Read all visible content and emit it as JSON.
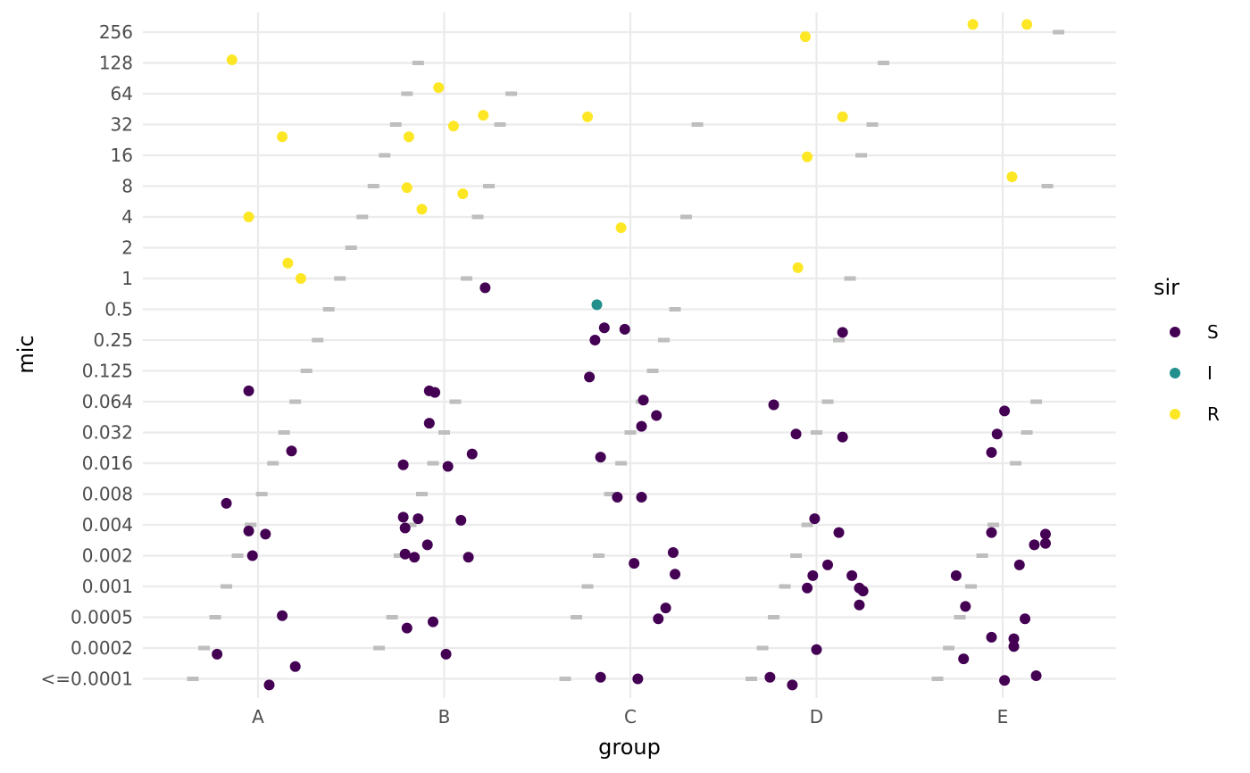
{
  "chart_data": {
    "type": "scatter",
    "xlabel": "group",
    "ylabel": "mic",
    "categories": [
      "A",
      "B",
      "C",
      "D",
      "E"
    ],
    "y_tick_labels": [
      "<=0.0001",
      "0.0002",
      "0.0005",
      "0.001",
      "0.002",
      "0.004",
      "0.008",
      "0.016",
      "0.032",
      "0.064",
      "0.125",
      "0.25",
      "0.5",
      "1",
      "2",
      "4",
      "8",
      "16",
      "32",
      "64",
      "128",
      "256"
    ],
    "grid": true,
    "legend": {
      "title": "sir",
      "placement": "right",
      "entries": [
        {
          "key": "S",
          "label": "S",
          "color": "#440154"
        },
        {
          "key": "I",
          "label": "I",
          "color": "#21908C"
        },
        {
          "key": "R",
          "label": "R",
          "color": "#FDE725"
        }
      ]
    },
    "marker_color": "#BEBEBE",
    "points": [
      {
        "group": "A",
        "x": 0.86,
        "y": 20.1,
        "sir": "R"
      },
      {
        "group": "A",
        "x": 0.95,
        "y": 15.0,
        "sir": "R"
      },
      {
        "group": "A",
        "x": 1.13,
        "y": 17.6,
        "sir": "R"
      },
      {
        "group": "A",
        "x": 1.16,
        "y": 13.5,
        "sir": "R"
      },
      {
        "group": "A",
        "x": 1.23,
        "y": 13.0,
        "sir": "R"
      },
      {
        "group": "A",
        "x": 0.95,
        "y": 9.35,
        "sir": "S"
      },
      {
        "group": "A",
        "x": 0.83,
        "y": 5.7,
        "sir": "S"
      },
      {
        "group": "A",
        "x": 0.95,
        "y": 4.8,
        "sir": "S"
      },
      {
        "group": "A",
        "x": 1.04,
        "y": 4.7,
        "sir": "S"
      },
      {
        "group": "A",
        "x": 0.97,
        "y": 4.0,
        "sir": "S"
      },
      {
        "group": "A",
        "x": 1.18,
        "y": 7.4,
        "sir": "S"
      },
      {
        "group": "A",
        "x": 1.13,
        "y": 2.05,
        "sir": "S"
      },
      {
        "group": "A",
        "x": 0.78,
        "y": 0.8,
        "sir": "S"
      },
      {
        "group": "A",
        "x": 1.2,
        "y": 0.4,
        "sir": "S"
      },
      {
        "group": "A",
        "x": 1.06,
        "y": -0.2,
        "sir": "S"
      },
      {
        "group": "B",
        "x": 1.97,
        "y": 19.2,
        "sir": "R"
      },
      {
        "group": "B",
        "x": 2.05,
        "y": 17.95,
        "sir": "R"
      },
      {
        "group": "B",
        "x": 2.21,
        "y": 18.3,
        "sir": "R"
      },
      {
        "group": "B",
        "x": 1.81,
        "y": 17.6,
        "sir": "R"
      },
      {
        "group": "B",
        "x": 1.8,
        "y": 15.95,
        "sir": "R"
      },
      {
        "group": "B",
        "x": 2.1,
        "y": 15.75,
        "sir": "R"
      },
      {
        "group": "B",
        "x": 1.88,
        "y": 15.25,
        "sir": "R"
      },
      {
        "group": "B",
        "x": 2.22,
        "y": 12.7,
        "sir": "S"
      },
      {
        "group": "B",
        "x": 1.92,
        "y": 9.35,
        "sir": "S"
      },
      {
        "group": "B",
        "x": 1.95,
        "y": 9.3,
        "sir": "S"
      },
      {
        "group": "B",
        "x": 1.92,
        "y": 8.3,
        "sir": "S"
      },
      {
        "group": "B",
        "x": 2.15,
        "y": 7.3,
        "sir": "S"
      },
      {
        "group": "B",
        "x": 1.78,
        "y": 6.95,
        "sir": "S"
      },
      {
        "group": "B",
        "x": 2.02,
        "y": 6.9,
        "sir": "S"
      },
      {
        "group": "B",
        "x": 1.78,
        "y": 5.25,
        "sir": "S"
      },
      {
        "group": "B",
        "x": 1.86,
        "y": 5.2,
        "sir": "S"
      },
      {
        "group": "B",
        "x": 1.79,
        "y": 4.9,
        "sir": "S"
      },
      {
        "group": "B",
        "x": 2.09,
        "y": 5.15,
        "sir": "S"
      },
      {
        "group": "B",
        "x": 1.91,
        "y": 4.35,
        "sir": "S"
      },
      {
        "group": "B",
        "x": 1.79,
        "y": 4.05,
        "sir": "S"
      },
      {
        "group": "B",
        "x": 1.84,
        "y": 3.95,
        "sir": "S"
      },
      {
        "group": "B",
        "x": 2.13,
        "y": 3.95,
        "sir": "S"
      },
      {
        "group": "B",
        "x": 1.94,
        "y": 1.85,
        "sir": "S"
      },
      {
        "group": "B",
        "x": 1.8,
        "y": 1.65,
        "sir": "S"
      },
      {
        "group": "B",
        "x": 2.01,
        "y": 0.8,
        "sir": "S"
      },
      {
        "group": "C",
        "x": 2.77,
        "y": 18.25,
        "sir": "R"
      },
      {
        "group": "C",
        "x": 2.95,
        "y": 14.65,
        "sir": "R"
      },
      {
        "group": "C",
        "x": 2.82,
        "y": 12.15,
        "sir": "I"
      },
      {
        "group": "C",
        "x": 2.86,
        "y": 11.4,
        "sir": "S"
      },
      {
        "group": "C",
        "x": 2.97,
        "y": 11.35,
        "sir": "S"
      },
      {
        "group": "C",
        "x": 2.81,
        "y": 11.0,
        "sir": "S"
      },
      {
        "group": "C",
        "x": 2.78,
        "y": 9.8,
        "sir": "S"
      },
      {
        "group": "C",
        "x": 3.07,
        "y": 9.05,
        "sir": "S"
      },
      {
        "group": "C",
        "x": 3.14,
        "y": 8.55,
        "sir": "S"
      },
      {
        "group": "C",
        "x": 3.06,
        "y": 8.2,
        "sir": "S"
      },
      {
        "group": "C",
        "x": 2.84,
        "y": 7.2,
        "sir": "S"
      },
      {
        "group": "C",
        "x": 2.93,
        "y": 5.9,
        "sir": "S"
      },
      {
        "group": "C",
        "x": 3.06,
        "y": 5.9,
        "sir": "S"
      },
      {
        "group": "C",
        "x": 3.23,
        "y": 4.1,
        "sir": "S"
      },
      {
        "group": "C",
        "x": 3.02,
        "y": 3.75,
        "sir": "S"
      },
      {
        "group": "C",
        "x": 3.24,
        "y": 3.4,
        "sir": "S"
      },
      {
        "group": "C",
        "x": 3.19,
        "y": 2.3,
        "sir": "S"
      },
      {
        "group": "C",
        "x": 3.15,
        "y": 1.95,
        "sir": "S"
      },
      {
        "group": "C",
        "x": 2.84,
        "y": 0.05,
        "sir": "S"
      },
      {
        "group": "C",
        "x": 3.04,
        "y": 0.0,
        "sir": "S"
      },
      {
        "group": "D",
        "x": 3.94,
        "y": 20.85,
        "sir": "R"
      },
      {
        "group": "D",
        "x": 4.14,
        "y": 18.25,
        "sir": "R"
      },
      {
        "group": "D",
        "x": 3.95,
        "y": 16.95,
        "sir": "R"
      },
      {
        "group": "D",
        "x": 3.9,
        "y": 13.35,
        "sir": "R"
      },
      {
        "group": "D",
        "x": 4.14,
        "y": 11.25,
        "sir": "S"
      },
      {
        "group": "D",
        "x": 3.77,
        "y": 8.9,
        "sir": "S"
      },
      {
        "group": "D",
        "x": 3.89,
        "y": 7.95,
        "sir": "S"
      },
      {
        "group": "D",
        "x": 4.14,
        "y": 7.85,
        "sir": "S"
      },
      {
        "group": "D",
        "x": 3.99,
        "y": 5.2,
        "sir": "S"
      },
      {
        "group": "D",
        "x": 4.12,
        "y": 4.75,
        "sir": "S"
      },
      {
        "group": "D",
        "x": 4.06,
        "y": 3.7,
        "sir": "S"
      },
      {
        "group": "D",
        "x": 3.98,
        "y": 3.35,
        "sir": "S"
      },
      {
        "group": "D",
        "x": 4.19,
        "y": 3.35,
        "sir": "S"
      },
      {
        "group": "D",
        "x": 3.95,
        "y": 2.95,
        "sir": "S"
      },
      {
        "group": "D",
        "x": 4.23,
        "y": 2.95,
        "sir": "S"
      },
      {
        "group": "D",
        "x": 4.25,
        "y": 2.85,
        "sir": "S"
      },
      {
        "group": "D",
        "x": 4.23,
        "y": 2.4,
        "sir": "S"
      },
      {
        "group": "D",
        "x": 4.0,
        "y": 0.95,
        "sir": "S"
      },
      {
        "group": "D",
        "x": 3.75,
        "y": 0.05,
        "sir": "S"
      },
      {
        "group": "D",
        "x": 3.87,
        "y": -0.2,
        "sir": "S"
      },
      {
        "group": "E",
        "x": 4.84,
        "y": 21.25,
        "sir": "R"
      },
      {
        "group": "E",
        "x": 5.13,
        "y": 21.25,
        "sir": "R"
      },
      {
        "group": "E",
        "x": 5.05,
        "y": 16.3,
        "sir": "R"
      },
      {
        "group": "E",
        "x": 5.01,
        "y": 8.7,
        "sir": "S"
      },
      {
        "group": "E",
        "x": 4.97,
        "y": 7.95,
        "sir": "S"
      },
      {
        "group": "E",
        "x": 4.94,
        "y": 7.35,
        "sir": "S"
      },
      {
        "group": "E",
        "x": 4.94,
        "y": 4.75,
        "sir": "S"
      },
      {
        "group": "E",
        "x": 5.23,
        "y": 4.7,
        "sir": "S"
      },
      {
        "group": "E",
        "x": 5.23,
        "y": 4.4,
        "sir": "S"
      },
      {
        "group": "E",
        "x": 5.17,
        "y": 4.35,
        "sir": "S"
      },
      {
        "group": "E",
        "x": 5.09,
        "y": 3.7,
        "sir": "S"
      },
      {
        "group": "E",
        "x": 4.75,
        "y": 3.35,
        "sir": "S"
      },
      {
        "group": "E",
        "x": 4.8,
        "y": 2.35,
        "sir": "S"
      },
      {
        "group": "E",
        "x": 5.12,
        "y": 1.95,
        "sir": "S"
      },
      {
        "group": "E",
        "x": 4.94,
        "y": 1.35,
        "sir": "S"
      },
      {
        "group": "E",
        "x": 5.06,
        "y": 1.3,
        "sir": "S"
      },
      {
        "group": "E",
        "x": 5.06,
        "y": 1.05,
        "sir": "S"
      },
      {
        "group": "E",
        "x": 4.79,
        "y": 0.65,
        "sir": "S"
      },
      {
        "group": "E",
        "x": 5.18,
        "y": 0.1,
        "sir": "S"
      },
      {
        "group": "E",
        "x": 5.01,
        "y": -0.05,
        "sir": "S"
      }
    ],
    "markers": [
      {
        "group": "A",
        "x": 0.65,
        "y": 0
      },
      {
        "group": "A",
        "x": 0.71,
        "y": 1
      },
      {
        "group": "A",
        "x": 0.77,
        "y": 2
      },
      {
        "group": "A",
        "x": 0.83,
        "y": 3
      },
      {
        "group": "A",
        "x": 0.89,
        "y": 4
      },
      {
        "group": "A",
        "x": 0.96,
        "y": 5
      },
      {
        "group": "A",
        "x": 1.02,
        "y": 6
      },
      {
        "group": "A",
        "x": 1.08,
        "y": 7
      },
      {
        "group": "A",
        "x": 1.14,
        "y": 8
      },
      {
        "group": "A",
        "x": 1.2,
        "y": 9
      },
      {
        "group": "A",
        "x": 1.26,
        "y": 10
      },
      {
        "group": "A",
        "x": 1.32,
        "y": 11
      },
      {
        "group": "A",
        "x": 1.38,
        "y": 12
      },
      {
        "group": "A",
        "x": 1.44,
        "y": 13
      },
      {
        "group": "A",
        "x": 1.5,
        "y": 14
      },
      {
        "group": "A",
        "x": 1.56,
        "y": 15
      },
      {
        "group": "A",
        "x": 1.62,
        "y": 16
      },
      {
        "group": "A",
        "x": 1.68,
        "y": 17
      },
      {
        "group": "A",
        "x": 1.74,
        "y": 18
      },
      {
        "group": "A",
        "x": 1.8,
        "y": 19
      },
      {
        "group": "A",
        "x": 1.86,
        "y": 20
      },
      {
        "group": "B",
        "x": 1.65,
        "y": 1
      },
      {
        "group": "B",
        "x": 1.72,
        "y": 2
      },
      {
        "group": "B",
        "x": 1.76,
        "y": 4
      },
      {
        "group": "B",
        "x": 1.82,
        "y": 5
      },
      {
        "group": "B",
        "x": 1.88,
        "y": 6
      },
      {
        "group": "B",
        "x": 1.94,
        "y": 7
      },
      {
        "group": "B",
        "x": 2.0,
        "y": 8
      },
      {
        "group": "B",
        "x": 2.06,
        "y": 9
      },
      {
        "group": "B",
        "x": 2.12,
        "y": 13
      },
      {
        "group": "B",
        "x": 2.18,
        "y": 15
      },
      {
        "group": "B",
        "x": 2.24,
        "y": 16
      },
      {
        "group": "B",
        "x": 2.3,
        "y": 18
      },
      {
        "group": "B",
        "x": 2.36,
        "y": 19
      },
      {
        "group": "C",
        "x": 2.65,
        "y": 0
      },
      {
        "group": "C",
        "x": 2.71,
        "y": 2
      },
      {
        "group": "C",
        "x": 2.77,
        "y": 3
      },
      {
        "group": "C",
        "x": 2.83,
        "y": 4
      },
      {
        "group": "C",
        "x": 2.89,
        "y": 6
      },
      {
        "group": "C",
        "x": 2.95,
        "y": 7
      },
      {
        "group": "C",
        "x": 3.0,
        "y": 8
      },
      {
        "group": "C",
        "x": 3.06,
        "y": 9
      },
      {
        "group": "C",
        "x": 3.12,
        "y": 10
      },
      {
        "group": "C",
        "x": 3.18,
        "y": 11
      },
      {
        "group": "C",
        "x": 3.24,
        "y": 12
      },
      {
        "group": "C",
        "x": 3.3,
        "y": 15
      },
      {
        "group": "C",
        "x": 3.36,
        "y": 18
      },
      {
        "group": "D",
        "x": 3.65,
        "y": 0
      },
      {
        "group": "D",
        "x": 3.71,
        "y": 1
      },
      {
        "group": "D",
        "x": 3.77,
        "y": 2
      },
      {
        "group": "D",
        "x": 3.83,
        "y": 3
      },
      {
        "group": "D",
        "x": 3.89,
        "y": 4
      },
      {
        "group": "D",
        "x": 3.95,
        "y": 5
      },
      {
        "group": "D",
        "x": 4.0,
        "y": 8
      },
      {
        "group": "D",
        "x": 4.06,
        "y": 9
      },
      {
        "group": "D",
        "x": 4.12,
        "y": 11
      },
      {
        "group": "D",
        "x": 4.18,
        "y": 13
      },
      {
        "group": "D",
        "x": 4.24,
        "y": 17
      },
      {
        "group": "D",
        "x": 4.3,
        "y": 18
      },
      {
        "group": "D",
        "x": 4.36,
        "y": 20
      },
      {
        "group": "E",
        "x": 4.65,
        "y": 0
      },
      {
        "group": "E",
        "x": 4.71,
        "y": 1
      },
      {
        "group": "E",
        "x": 4.77,
        "y": 2
      },
      {
        "group": "E",
        "x": 4.83,
        "y": 3
      },
      {
        "group": "E",
        "x": 4.89,
        "y": 4
      },
      {
        "group": "E",
        "x": 4.95,
        "y": 5
      },
      {
        "group": "E",
        "x": 5.07,
        "y": 7
      },
      {
        "group": "E",
        "x": 5.13,
        "y": 8
      },
      {
        "group": "E",
        "x": 5.18,
        "y": 9
      },
      {
        "group": "E",
        "x": 5.24,
        "y": 16
      },
      {
        "group": "E",
        "x": 5.3,
        "y": 21
      }
    ]
  }
}
